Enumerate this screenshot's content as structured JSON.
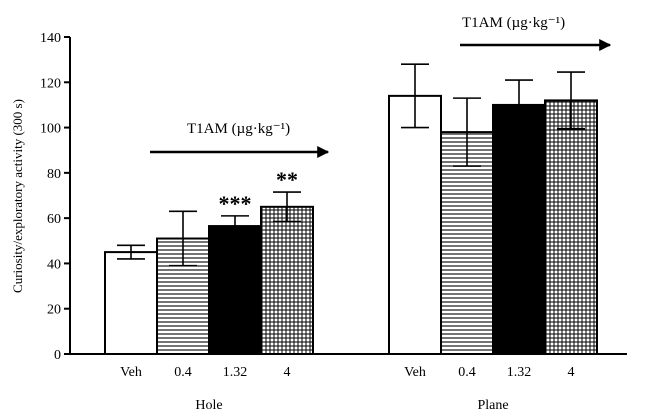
{
  "chart_data": {
    "type": "bar",
    "title": "",
    "ylabel": "Curiosity/exploratory activity (300 s)",
    "ylim": [
      0,
      140
    ],
    "yticks": [
      0,
      20,
      40,
      60,
      80,
      100,
      120,
      140
    ],
    "grid": false,
    "groups": [
      {
        "name": "Hole",
        "annotation": "T1AM (µg·kg⁻¹)",
        "bars": [
          {
            "label": "Veh",
            "value": 45,
            "error": 3,
            "pattern": "white",
            "sig": ""
          },
          {
            "label": "0.4",
            "value": 51,
            "error": 12,
            "pattern": "horizontal",
            "sig": ""
          },
          {
            "label": "1.32",
            "value": 56.5,
            "error": 4.5,
            "pattern": "black",
            "sig": "***"
          },
          {
            "label": "4",
            "value": 65,
            "error": 6.5,
            "pattern": "grid",
            "sig": "**"
          }
        ]
      },
      {
        "name": "Plane",
        "annotation": "T1AM (µg·kg⁻¹)",
        "bars": [
          {
            "label": "Veh",
            "value": 114,
            "error": 14,
            "pattern": "white",
            "sig": ""
          },
          {
            "label": "0.4",
            "value": 98,
            "error": 15,
            "pattern": "horizontal",
            "sig": ""
          },
          {
            "label": "1.32",
            "value": 110,
            "error": 11,
            "pattern": "black",
            "sig": ""
          },
          {
            "label": "4",
            "value": 112,
            "error": 12.5,
            "pattern": "grid",
            "sig": ""
          }
        ]
      }
    ]
  }
}
